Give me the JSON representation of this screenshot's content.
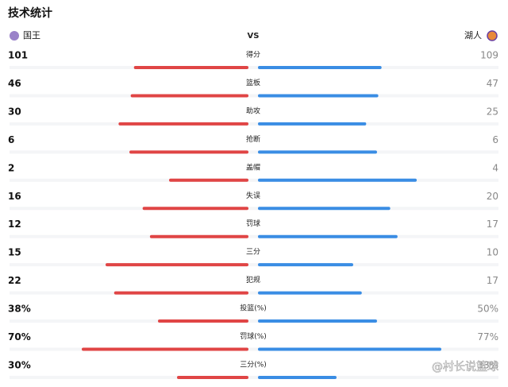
{
  "header": {
    "title": "技术统计",
    "home_team": "国王",
    "vs": "VS",
    "away_team": "湖人"
  },
  "stats": [
    {
      "label": "得分",
      "home": 101,
      "away": 109
    },
    {
      "label": "篮板",
      "home": 46,
      "away": 47
    },
    {
      "label": "助攻",
      "home": 30,
      "away": 25
    },
    {
      "label": "抢断",
      "home": 6,
      "away": 6
    },
    {
      "label": "盖帽",
      "home": 2,
      "away": 4
    },
    {
      "label": "失误",
      "home": 16,
      "away": 20
    },
    {
      "label": "罚球",
      "home": 12,
      "away": 17
    },
    {
      "label": "三分",
      "home": 15,
      "away": 10
    },
    {
      "label": "犯规",
      "home": 22,
      "away": 17
    },
    {
      "label": "投篮(%)",
      "home": {
        "value": 38,
        "label": "38%"
      },
      "away": {
        "value": 50,
        "label": "50%"
      }
    },
    {
      "label": "罚球(%)",
      "home": {
        "value": 70,
        "label": "70%"
      },
      "away": {
        "value": 77,
        "label": "77%"
      }
    },
    {
      "label": "三分(%)",
      "home": {
        "value": 30,
        "label": "30%"
      },
      "away": {
        "value": 33,
        "label": "33%"
      }
    }
  ],
  "watermark": "@村长说篮球"
}
